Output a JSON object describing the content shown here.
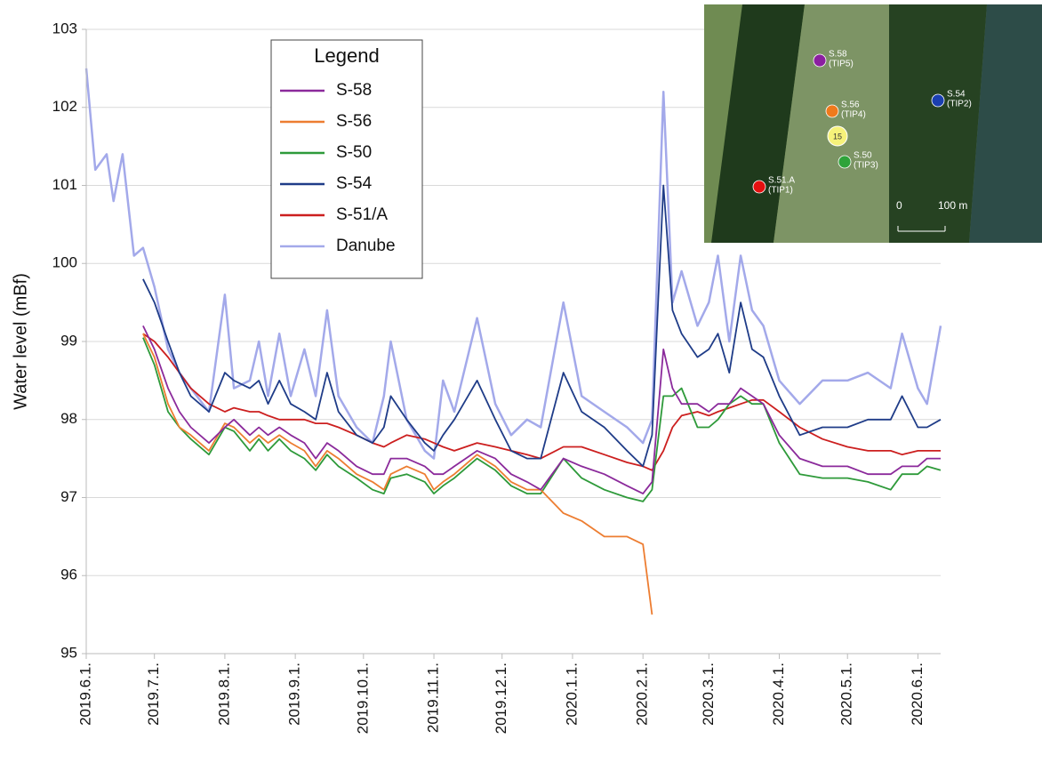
{
  "chart_data": {
    "type": "line",
    "ylabel": "Water level (mBf)",
    "legend_title": "Legend",
    "legend": "upper left",
    "grid": true,
    "x": [
      "2019-06-01",
      "2019-06-05",
      "2019-06-10",
      "2019-06-13",
      "2019-06-17",
      "2019-06-22",
      "2019-06-26",
      "2019-07-01",
      "2019-07-07",
      "2019-07-12",
      "2019-07-17",
      "2019-07-25",
      "2019-08-01",
      "2019-08-05",
      "2019-08-12",
      "2019-08-16",
      "2019-08-20",
      "2019-08-25",
      "2019-08-30",
      "2019-09-05",
      "2019-09-10",
      "2019-09-15",
      "2019-09-20",
      "2019-09-28",
      "2019-10-05",
      "2019-10-10",
      "2019-10-13",
      "2019-10-20",
      "2019-10-28",
      "2019-11-01",
      "2019-11-05",
      "2019-11-10",
      "2019-11-20",
      "2019-11-28",
      "2019-12-05",
      "2019-12-12",
      "2019-12-18",
      "2019-12-28",
      "2020-01-05",
      "2020-01-15",
      "2020-01-25",
      "2020-02-01",
      "2020-02-05",
      "2020-02-10",
      "2020-02-14",
      "2020-02-18",
      "2020-02-25",
      "2020-03-01",
      "2020-03-05",
      "2020-03-10",
      "2020-03-15",
      "2020-03-20",
      "2020-03-25",
      "2020-04-01",
      "2020-04-10",
      "2020-04-20",
      "2020-05-01",
      "2020-05-10",
      "2020-05-20",
      "2020-05-25",
      "2020-06-01",
      "2020-06-05",
      "2020-06-11"
    ],
    "series": [
      {
        "name": "S-58",
        "color": "#8b2a9b",
        "values": [
          null,
          null,
          null,
          null,
          null,
          null,
          99.2,
          98.9,
          98.4,
          98.1,
          97.9,
          97.7,
          97.9,
          98.0,
          97.8,
          97.9,
          97.8,
          97.9,
          97.8,
          97.7,
          97.5,
          97.7,
          97.6,
          97.4,
          97.3,
          97.3,
          97.5,
          97.5,
          97.4,
          97.3,
          97.3,
          97.4,
          97.6,
          97.5,
          97.3,
          97.2,
          97.1,
          97.5,
          97.4,
          97.3,
          97.15,
          97.05,
          97.2,
          98.9,
          98.4,
          98.2,
          98.2,
          98.1,
          98.2,
          98.2,
          98.4,
          98.3,
          98.2,
          97.8,
          97.5,
          97.4,
          97.4,
          97.3,
          97.3,
          97.4,
          97.4,
          97.5,
          97.5
        ]
      },
      {
        "name": "S-56",
        "color": "#ed7d31",
        "values": [
          null,
          null,
          null,
          null,
          null,
          null,
          99.1,
          98.8,
          98.2,
          97.9,
          97.8,
          97.6,
          97.95,
          97.9,
          97.7,
          97.8,
          97.7,
          97.8,
          97.7,
          97.6,
          97.4,
          97.6,
          97.5,
          97.3,
          97.2,
          97.1,
          97.3,
          97.4,
          97.3,
          97.1,
          97.2,
          97.3,
          97.55,
          97.4,
          97.2,
          97.1,
          97.1,
          96.8,
          96.7,
          96.5,
          96.5,
          96.4,
          95.5,
          null,
          null,
          null,
          null,
          null,
          null,
          null,
          null,
          null,
          null,
          null,
          null,
          null,
          null,
          null,
          null,
          null,
          null,
          null,
          null
        ]
      },
      {
        "name": "S-50",
        "color": "#2e9a3a",
        "values": [
          null,
          null,
          null,
          null,
          null,
          null,
          99.05,
          98.7,
          98.1,
          97.9,
          97.75,
          97.55,
          97.9,
          97.85,
          97.6,
          97.75,
          97.6,
          97.75,
          97.6,
          97.5,
          97.35,
          97.55,
          97.4,
          97.25,
          97.1,
          97.05,
          97.25,
          97.3,
          97.2,
          97.05,
          97.15,
          97.25,
          97.5,
          97.35,
          97.15,
          97.05,
          97.05,
          97.5,
          97.25,
          97.1,
          97.0,
          96.95,
          97.1,
          98.3,
          98.3,
          98.4,
          97.9,
          97.9,
          98.0,
          98.2,
          98.3,
          98.2,
          98.2,
          97.7,
          97.3,
          97.25,
          97.25,
          97.2,
          97.1,
          97.3,
          97.3,
          97.4,
          97.35
        ]
      },
      {
        "name": "S-54",
        "color": "#1f3c88",
        "values": [
          null,
          null,
          null,
          null,
          null,
          null,
          99.8,
          99.5,
          99.0,
          98.6,
          98.3,
          98.1,
          98.6,
          98.5,
          98.4,
          98.5,
          98.2,
          98.5,
          98.2,
          98.1,
          98.0,
          98.6,
          98.1,
          97.8,
          97.7,
          97.9,
          98.3,
          98.0,
          97.7,
          97.6,
          97.8,
          98.0,
          98.5,
          98.0,
          97.6,
          97.5,
          97.5,
          98.6,
          98.1,
          97.9,
          97.6,
          97.4,
          97.8,
          101.0,
          99.4,
          99.1,
          98.8,
          98.9,
          99.1,
          98.6,
          99.5,
          98.9,
          98.8,
          98.3,
          97.8,
          97.9,
          97.9,
          98.0,
          98.0,
          98.3,
          97.9,
          97.9,
          98.0
        ]
      },
      {
        "name": "S-51/A",
        "color": "#cc1f1f",
        "values": [
          null,
          null,
          null,
          null,
          null,
          null,
          99.1,
          99.0,
          98.8,
          98.6,
          98.4,
          98.2,
          98.1,
          98.15,
          98.1,
          98.1,
          98.05,
          98.0,
          98.0,
          98.0,
          97.95,
          97.95,
          97.9,
          97.8,
          97.7,
          97.65,
          97.7,
          97.8,
          97.75,
          97.7,
          97.65,
          97.6,
          97.7,
          97.65,
          97.6,
          97.55,
          97.5,
          97.65,
          97.65,
          97.55,
          97.45,
          97.4,
          97.35,
          97.6,
          97.9,
          98.05,
          98.1,
          98.05,
          98.1,
          98.15,
          98.2,
          98.25,
          98.25,
          98.1,
          97.9,
          97.75,
          97.65,
          97.6,
          97.6,
          97.55,
          97.6,
          97.6,
          97.6
        ]
      },
      {
        "name": "Danube",
        "color": "#a3a9ea",
        "values": [
          102.5,
          101.2,
          101.4,
          100.8,
          101.4,
          100.1,
          100.2,
          99.7,
          98.9,
          98.6,
          98.4,
          98.1,
          99.6,
          98.4,
          98.5,
          99.0,
          98.3,
          99.1,
          98.3,
          98.9,
          98.3,
          99.4,
          98.3,
          97.9,
          97.7,
          98.3,
          99.0,
          98.0,
          97.6,
          97.5,
          98.5,
          98.1,
          99.3,
          98.2,
          97.8,
          98.0,
          97.9,
          99.5,
          98.3,
          98.1,
          97.9,
          97.7,
          98.0,
          102.2,
          99.5,
          99.9,
          99.2,
          99.5,
          100.1,
          99.0,
          100.1,
          99.4,
          99.2,
          98.5,
          98.2,
          98.5,
          98.5,
          98.6,
          98.4,
          99.1,
          98.4,
          98.2,
          99.2
        ]
      }
    ],
    "xlim": [
      "2019-06-01",
      "2020-06-11"
    ],
    "xticks": [
      {
        "value": "2019-06-01",
        "label": "2019.6.1."
      },
      {
        "value": "2019-07-01",
        "label": "2019.7.1."
      },
      {
        "value": "2019-08-01",
        "label": "2019.8.1."
      },
      {
        "value": "2019-09-01",
        "label": "2019.9.1."
      },
      {
        "value": "2019-10-01",
        "label": "2019.10.1."
      },
      {
        "value": "2019-11-01",
        "label": "2019.11.1."
      },
      {
        "value": "2019-12-01",
        "label": "2019.12.1."
      },
      {
        "value": "2020-01-01",
        "label": "2020.1.1."
      },
      {
        "value": "2020-02-01",
        "label": "2020.2.1."
      },
      {
        "value": "2020-03-01",
        "label": "2020.3.1."
      },
      {
        "value": "2020-04-01",
        "label": "2020.4.1."
      },
      {
        "value": "2020-05-01",
        "label": "2020.5.1."
      },
      {
        "value": "2020-06-01",
        "label": "2020.6.1."
      }
    ],
    "ylim": [
      95,
      103
    ],
    "yticks": [
      95,
      96,
      97,
      98,
      99,
      100,
      101,
      102,
      103
    ]
  },
  "inset_map": {
    "points": [
      {
        "name": "S.58",
        "sub": "(TIP5)",
        "color": "#8b1fa0"
      },
      {
        "name": "S.56",
        "sub": "(TIP4)",
        "color": "#f07a1c"
      },
      {
        "name": "S.50",
        "sub": "(TIP3)",
        "color": "#2fa33a"
      },
      {
        "name": "S.54",
        "sub": "(TIP2)",
        "color": "#1b3fb0"
      },
      {
        "name": "S.51.A",
        "sub": "(TIP1)",
        "color": "#e51010"
      }
    ],
    "marker": "15",
    "scale_labels": [
      "0",
      "100 m"
    ]
  }
}
